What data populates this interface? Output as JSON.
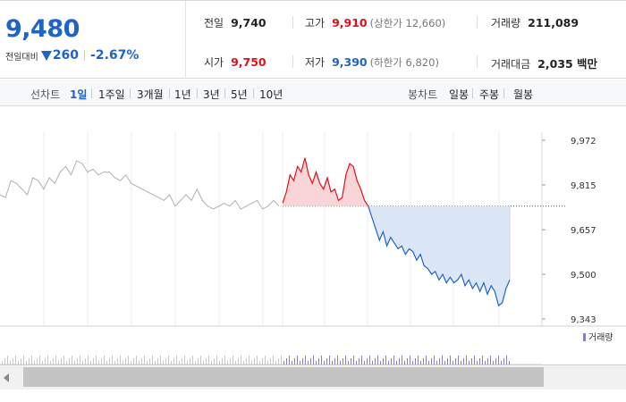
{
  "price": {
    "current": "9,480",
    "change_label": "전일대비",
    "change_amount": "260",
    "change_percent": "-2.67%"
  },
  "stats": {
    "prev_close_label": "전일",
    "prev_close": "9,740",
    "high_label": "고가",
    "high": "9,910",
    "upper_limit": "(상한가 12,660)",
    "volume_label": "거래량",
    "volume": "211,089",
    "open_label": "시가",
    "open": "9,750",
    "low_label": "저가",
    "low": "9,390",
    "lower_limit": "(하한가 6,820)",
    "value_label": "거래대금",
    "value": "2,035 백만"
  },
  "tabs": {
    "line_label": "선차트",
    "line": [
      "1일",
      "1주일",
      "3개월",
      "1년",
      "3년",
      "5년",
      "10년"
    ],
    "active": "1일",
    "candle_label": "봉차트",
    "candle": [
      "일봉",
      "주봉",
      "월봉"
    ]
  },
  "colors": {
    "up": "#e0101a",
    "down": "#1f63c6",
    "prev": "#b0b0b0",
    "up_fill": "#f8d6d8",
    "down_fill": "#dbe6f6",
    "volume": "#8c7cc7"
  },
  "volume_legend": "거래량",
  "chart_data": {
    "type": "line",
    "y_ticks": [
      "9,972",
      "9,815",
      "9,657",
      "9,500",
      "9,343"
    ],
    "y_tick_values": [
      9972,
      9815,
      9657,
      9500,
      9343
    ],
    "ylim": [
      9343,
      9972
    ],
    "reference": 9740,
    "series": [
      {
        "name": "prev_day",
        "values": [
          9780,
          9770,
          9830,
          9820,
          9800,
          9780,
          9840,
          9830,
          9800,
          9840,
          9820,
          9860,
          9880,
          9850,
          9900,
          9890,
          9860,
          9870,
          9850,
          9860,
          9860,
          9840,
          9830,
          9850,
          9820,
          9810,
          9800,
          9790,
          9780,
          9770,
          9760,
          9780,
          9740,
          9760,
          9780,
          9760,
          9800,
          9760,
          9740,
          9730,
          9740,
          9750,
          9740,
          9760,
          9730,
          9740,
          9750,
          9760,
          9730,
          9740,
          9760,
          9740
        ]
      },
      {
        "name": "today",
        "values": [
          9750,
          9790,
          9850,
          9830,
          9880,
          9860,
          9910,
          9850,
          9820,
          9860,
          9820,
          9800,
          9840,
          9790,
          9800,
          9760,
          9770,
          9850,
          9890,
          9880,
          9830,
          9800,
          9760,
          9740,
          9700,
          9660,
          9620,
          9650,
          9600,
          9630,
          9610,
          9590,
          9600,
          9570,
          9590,
          9580,
          9550,
          9570,
          9530,
          9520,
          9500,
          9510,
          9480,
          9500,
          9470,
          9490,
          9470,
          9480,
          9500,
          9460,
          9480,
          9450,
          9470,
          9440,
          9470,
          9430,
          9460,
          9440,
          9390,
          9400,
          9450,
          9480
        ]
      }
    ]
  }
}
